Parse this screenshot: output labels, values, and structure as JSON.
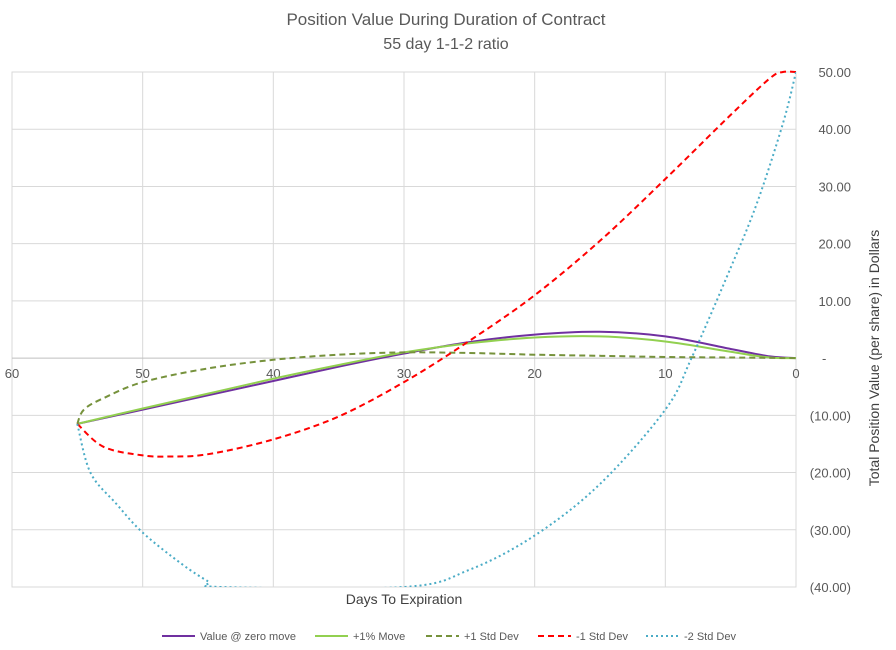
{
  "chart_data": {
    "type": "line",
    "title": "Position Value During Duration of Contract",
    "subtitle": "55 day 1-1-2 ratio",
    "xlabel": "Days To Expiration",
    "ylabel": "Total Position Value (per share) in Dollars",
    "xlim": [
      60,
      0
    ],
    "ylim": [
      -40,
      50
    ],
    "x_ticks": [
      {
        "value": 60,
        "label": "60"
      },
      {
        "value": 50,
        "label": "50"
      },
      {
        "value": 40,
        "label": "40"
      },
      {
        "value": 30,
        "label": "30"
      },
      {
        "value": 20,
        "label": "20"
      },
      {
        "value": 10,
        "label": "10"
      },
      {
        "value": 0,
        "label": "0"
      }
    ],
    "y_ticks": [
      {
        "value": 50,
        "label": "50.00"
      },
      {
        "value": 40,
        "label": "40.00"
      },
      {
        "value": 30,
        "label": "30.00"
      },
      {
        "value": 20,
        "label": "20.00"
      },
      {
        "value": 10,
        "label": "10.00"
      },
      {
        "value": 0,
        "label": "-"
      },
      {
        "value": -10,
        "label": "(10.00)"
      },
      {
        "value": -20,
        "label": "(20.00)"
      },
      {
        "value": -30,
        "label": "(30.00)"
      },
      {
        "value": -40,
        "label": "(40.00)"
      }
    ],
    "grid": true,
    "legend_position": "bottom",
    "series": [
      {
        "name": "Value @ zero move",
        "color": "#7030a0",
        "style": "solid",
        "x": [
          55,
          50,
          45,
          40,
          35,
          30,
          25,
          20,
          15,
          10,
          5,
          2,
          0
        ],
        "y": [
          -11.5,
          -9,
          -6.5,
          -4,
          -1.5,
          0.8,
          2.8,
          4.1,
          4.6,
          3.8,
          1.6,
          0.3,
          0
        ]
      },
      {
        "name": "+1% Move",
        "color": "#92d050",
        "style": "solid",
        "x": [
          55,
          50,
          45,
          40,
          35,
          30,
          25,
          20,
          15,
          10,
          5,
          2,
          0
        ],
        "y": [
          -11.5,
          -8.8,
          -6.2,
          -3.6,
          -1.2,
          1,
          2.6,
          3.6,
          3.8,
          2.9,
          1.1,
          0.1,
          0
        ]
      },
      {
        "name": "+1 Std Dev",
        "color": "#76923c",
        "style": "dashed",
        "x": [
          55,
          54.5,
          53,
          50,
          45,
          40,
          35,
          30,
          25,
          20,
          15,
          10,
          5,
          0
        ],
        "y": [
          -11.5,
          -9,
          -7,
          -4.2,
          -1.8,
          -0.3,
          0.6,
          1,
          0.9,
          0.6,
          0.4,
          0.2,
          0.1,
          0
        ]
      },
      {
        "name": "-1 Std Dev",
        "color": "#ff0000",
        "style": "dashed",
        "x": [
          55,
          53,
          50,
          48,
          45,
          40,
          35,
          30,
          25,
          20,
          15,
          10,
          5,
          2,
          1,
          0
        ],
        "y": [
          -11.5,
          -15.5,
          -17,
          -17.2,
          -16.8,
          -14.2,
          -10.2,
          -4.2,
          3,
          11,
          20.5,
          31.3,
          42.5,
          48.9,
          50,
          50
        ]
      },
      {
        "name": "-2 Std Dev",
        "color": "#4bacc6",
        "style": "dotted",
        "x": [
          55,
          54,
          52,
          50,
          47,
          45,
          44,
          30,
          25,
          20,
          15,
          10,
          8,
          5,
          3,
          1,
          0
        ],
        "y": [
          -11.5,
          -20,
          -25.5,
          -30.5,
          -36,
          -39,
          -40,
          -40,
          -37,
          -31,
          -22,
          -9,
          0,
          15.8,
          27,
          41,
          50
        ]
      }
    ]
  }
}
